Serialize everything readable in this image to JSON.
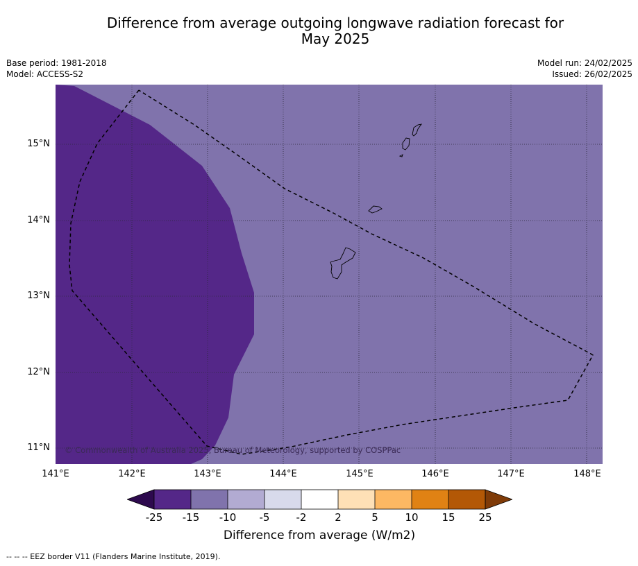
{
  "title_line1": "Difference from average outgoing longwave radiation forecast for",
  "title_line2": "May 2025",
  "meta_left": [
    "Base period: 1981-2018",
    "Model: ACCESS-S2"
  ],
  "meta_right": [
    "Model run: 24/02/2025",
    "Issued: 26/02/2025"
  ],
  "copyright": "© Commonwealth of Australia 2025, Bureau of Meteorology, supported by COSPPac",
  "lat_labels": [
    "15°N",
    "14°N",
    "13°N",
    "12°N",
    "11°N"
  ],
  "lon_labels": [
    "141°E",
    "142°E",
    "143°E",
    "144°E",
    "145°E",
    "146°E",
    "147°E",
    "148°E"
  ],
  "colorbar": {
    "ticks": [
      "-25",
      "-15",
      "-10",
      "-5",
      "-2",
      "2",
      "5",
      "10",
      "15",
      "25"
    ],
    "colors": [
      "#2d0a4e",
      "#542788",
      "#8073ac",
      "#b2abd2",
      "#d8daeb",
      "#ffffff",
      "#fee0b6",
      "#fdb863",
      "#e08214",
      "#b35806",
      "#7f3b08"
    ],
    "label": "Difference from average (W/m2)"
  },
  "map_colors": {
    "strong_negative": "#542788",
    "moderate_negative": "#8073ac"
  },
  "footnote": "-- -- -- EEZ border V11 (Flanders Marine Institute, 2019)."
}
